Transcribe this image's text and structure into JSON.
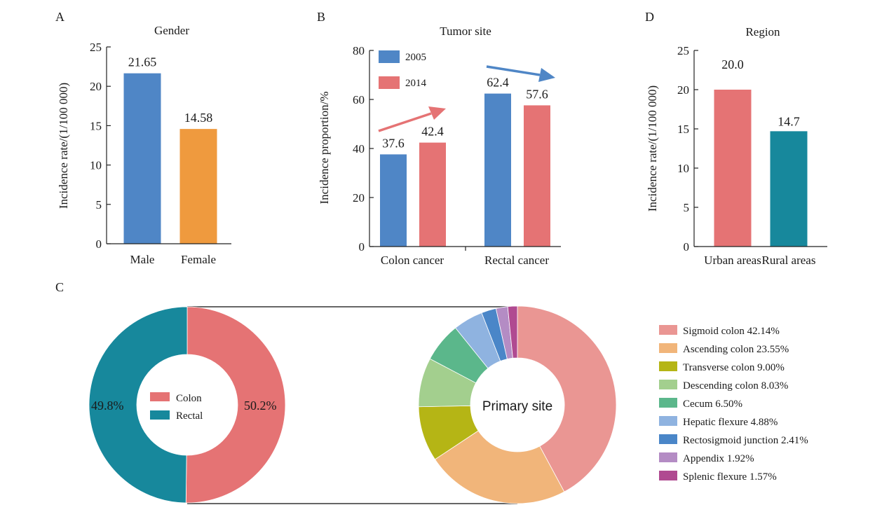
{
  "chart_data": [
    {
      "panel": "A",
      "type": "bar",
      "title": "Gender",
      "ylabel": "Incidence rate/(1/100 000)",
      "ylim": [
        0,
        25
      ],
      "yticks": [
        "0",
        "5",
        "10",
        "15",
        "20",
        "25"
      ],
      "categories": [
        "Male",
        "Female"
      ],
      "values": [
        21.65,
        14.58
      ],
      "value_labels": [
        "21.65",
        "14.58"
      ],
      "colors": [
        "#4f86c6",
        "#ef9a3e"
      ]
    },
    {
      "panel": "B",
      "type": "bar",
      "title": "Tumor site",
      "ylabel": "Incidence proportion/%",
      "ylim": [
        0,
        80
      ],
      "yticks": [
        "0",
        "20",
        "40",
        "60",
        "80"
      ],
      "categories": [
        "Colon cancer",
        "Rectal cancer"
      ],
      "series": [
        {
          "name": "2005",
          "values": [
            37.6,
            62.4
          ],
          "value_labels": [
            "37.6",
            "62.4"
          ],
          "color": "#4f86c6"
        },
        {
          "name": "2014",
          "values": [
            42.4,
            57.6
          ],
          "value_labels": [
            "42.4",
            "57.6"
          ],
          "color": "#e57374"
        }
      ],
      "legend_position": "top-left"
    },
    {
      "panel": "D",
      "type": "bar",
      "title": "Region",
      "ylabel": "Incidence rate/(1/100 000)",
      "ylim": [
        0,
        25
      ],
      "yticks": [
        "0",
        "5",
        "10",
        "15",
        "20",
        "25"
      ],
      "categories": [
        "Urban areas",
        "Rural areas"
      ],
      "values": [
        20.0,
        14.7
      ],
      "value_labels": [
        "20.0",
        "14.7"
      ],
      "colors": [
        "#e57374",
        "#17889c"
      ]
    },
    {
      "panel": "C",
      "type": "pie",
      "variant": "donut",
      "slices": [
        {
          "name": "Colon",
          "value": 50.2,
          "label": "50.2%",
          "color": "#e57374"
        },
        {
          "name": "Rectal",
          "value": 49.8,
          "label": "49.8%",
          "color": "#17889c"
        }
      ]
    },
    {
      "panel": "C",
      "type": "pie",
      "variant": "donut",
      "center_label": "Primary site",
      "slices": [
        {
          "name": "Sigmoid colon",
          "value": 42.14,
          "legend": "Sigmoid colon 42.14%",
          "color": "#ea9693"
        },
        {
          "name": "Ascending colon",
          "value": 23.55,
          "legend": "Ascending colon 23.55%",
          "color": "#f1b57a"
        },
        {
          "name": "Transverse colon",
          "value": 9.0,
          "legend": "Transverse colon 9.00%",
          "color": "#b5b515"
        },
        {
          "name": "Descending colon",
          "value": 8.03,
          "legend": "Descending colon 8.03%",
          "color": "#a3cf8e"
        },
        {
          "name": "Cecum",
          "value": 6.5,
          "legend": "Cecum 6.50%",
          "color": "#5bb78b"
        },
        {
          "name": "Hepatic flexure",
          "value": 4.88,
          "legend": "Hepatic flexure 4.88%",
          "color": "#8fb3e0"
        },
        {
          "name": "Rectosigmoid junction",
          "value": 2.41,
          "legend": "Rectosigmoid junction 2.41%",
          "color": "#4a86c8"
        },
        {
          "name": "Appendix",
          "value": 1.92,
          "legend": "Appendix 1.92%",
          "color": "#b48cc4"
        },
        {
          "name": "Splenic flexure",
          "value": 1.57,
          "legend": "Splenic flexure 1.57%",
          "color": "#b04a91"
        }
      ]
    }
  ],
  "panels": {
    "a": "A",
    "b": "B",
    "c": "C",
    "d": "D"
  },
  "colors": {
    "arrow_up": "#e57374",
    "arrow_down": "#4f86c6",
    "connector": "#333333"
  }
}
